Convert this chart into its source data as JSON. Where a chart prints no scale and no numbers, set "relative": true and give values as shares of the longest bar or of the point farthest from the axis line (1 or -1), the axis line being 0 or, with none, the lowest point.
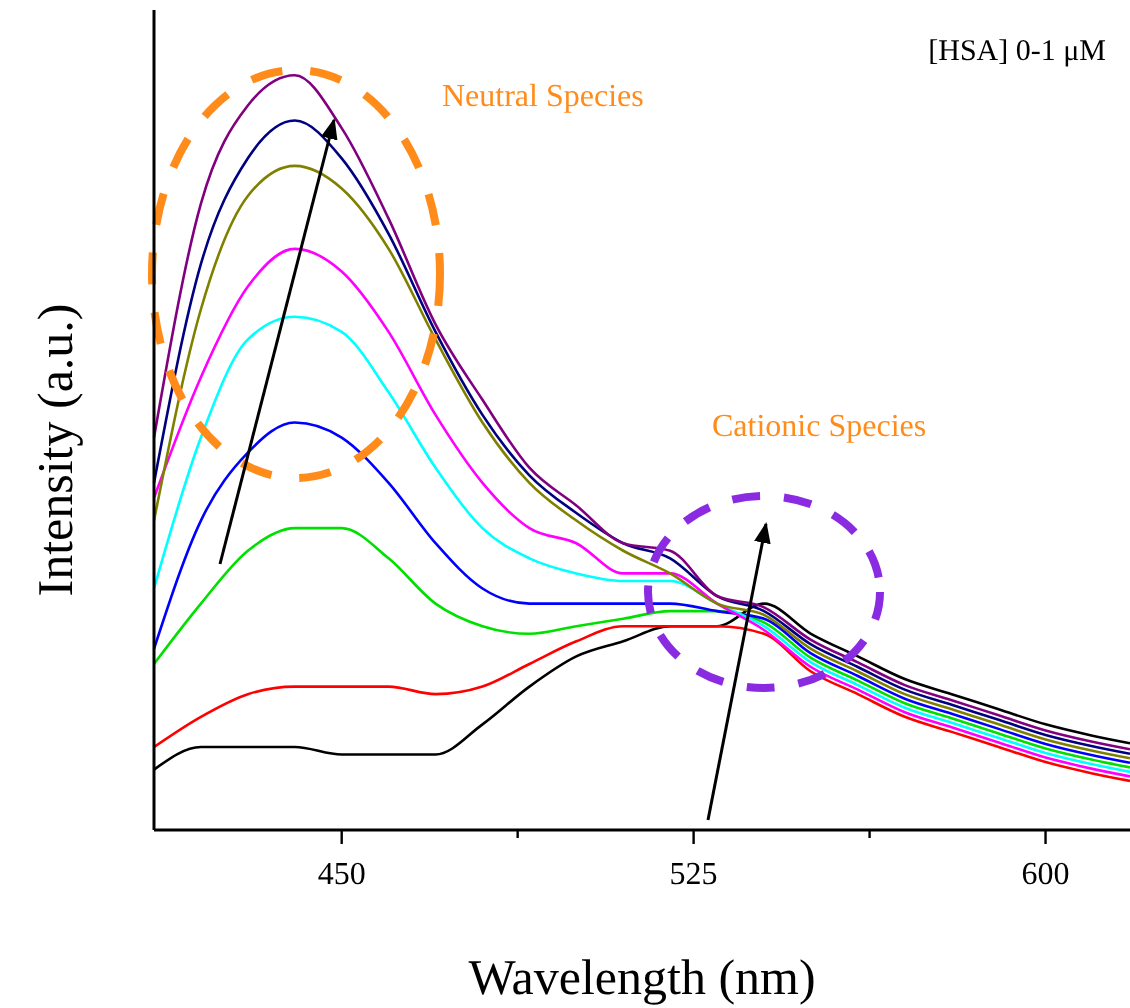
{
  "chart_data": {
    "type": "line",
    "relative": true,
    "xlabel": "Wavelength (nm)",
    "ylabel": "Intensity (a.u.)",
    "x": [
      410,
      420,
      430,
      440,
      450,
      460,
      470,
      480,
      490,
      500,
      510,
      520,
      530,
      540,
      550,
      560,
      570,
      580,
      590,
      600,
      610,
      618
    ],
    "xlim": [
      410,
      618
    ],
    "xticks": [
      450,
      {
        "value": 487.5,
        "label": null
      },
      525,
      {
        "value": 562.5,
        "label": null
      },
      600
    ],
    "grid": false,
    "marker": "none",
    "line_style": "solid",
    "annotations": [
      "[HSA] 0-1 μM",
      "Neutral Species",
      "Cationic Species"
    ],
    "series": [
      {
        "color": "#000000",
        "values": [
          0.08,
          0.11,
          0.11,
          0.11,
          0.1,
          0.1,
          0.1,
          0.14,
          0.19,
          0.23,
          0.25,
          0.27,
          0.27,
          0.3,
          0.26,
          0.23,
          0.2,
          0.18,
          0.16,
          0.14,
          0.125,
          0.115
        ]
      },
      {
        "color": "#ff0000",
        "values": [
          0.11,
          0.15,
          0.18,
          0.19,
          0.19,
          0.19,
          0.18,
          0.19,
          0.22,
          0.25,
          0.27,
          0.27,
          0.27,
          0.26,
          0.21,
          0.18,
          0.15,
          0.13,
          0.11,
          0.09,
          0.075,
          0.065
        ]
      },
      {
        "color": "#00e000",
        "values": [
          0.22,
          0.3,
          0.37,
          0.4,
          0.4,
          0.36,
          0.3,
          0.27,
          0.26,
          0.27,
          0.28,
          0.29,
          0.29,
          0.275,
          0.228,
          0.198,
          0.168,
          0.148,
          0.128,
          0.108,
          0.093,
          0.083
        ]
      },
      {
        "color": "#0000ff",
        "values": [
          0.24,
          0.41,
          0.5,
          0.54,
          0.52,
          0.46,
          0.38,
          0.32,
          0.3,
          0.3,
          0.3,
          0.3,
          0.29,
          0.28,
          0.234,
          0.204,
          0.174,
          0.154,
          0.134,
          0.114,
          0.099,
          0.089
        ]
      },
      {
        "color": "#00ffff",
        "values": [
          0.32,
          0.52,
          0.65,
          0.68,
          0.66,
          0.58,
          0.48,
          0.4,
          0.36,
          0.34,
          0.33,
          0.33,
          0.3,
          0.27,
          0.222,
          0.192,
          0.162,
          0.142,
          0.122,
          0.102,
          0.087,
          0.077
        ]
      },
      {
        "color": "#ff00ff",
        "values": [
          0.44,
          0.6,
          0.72,
          0.77,
          0.74,
          0.66,
          0.55,
          0.46,
          0.4,
          0.38,
          0.34,
          0.34,
          0.3,
          0.265,
          0.216,
          0.186,
          0.156,
          0.136,
          0.116,
          0.096,
          0.081,
          0.071
        ]
      },
      {
        "color": "#808000",
        "values": [
          0.41,
          0.69,
          0.84,
          0.88,
          0.85,
          0.77,
          0.65,
          0.54,
          0.46,
          0.41,
          0.37,
          0.34,
          0.3,
          0.285,
          0.24,
          0.21,
          0.18,
          0.16,
          0.14,
          0.12,
          0.105,
          0.095
        ]
      },
      {
        "color": "#000080",
        "values": [
          0.46,
          0.75,
          0.89,
          0.94,
          0.89,
          0.79,
          0.66,
          0.55,
          0.47,
          0.42,
          0.38,
          0.36,
          0.31,
          0.29,
          0.246,
          0.216,
          0.186,
          0.166,
          0.146,
          0.126,
          0.111,
          0.101
        ]
      },
      {
        "color": "#800080",
        "values": [
          0.52,
          0.83,
          0.96,
          1.0,
          0.93,
          0.81,
          0.67,
          0.57,
          0.48,
          0.43,
          0.38,
          0.37,
          0.31,
          0.295,
          0.252,
          0.222,
          0.192,
          0.172,
          0.152,
          0.132,
          0.117,
          0.107
        ]
      }
    ]
  }
}
